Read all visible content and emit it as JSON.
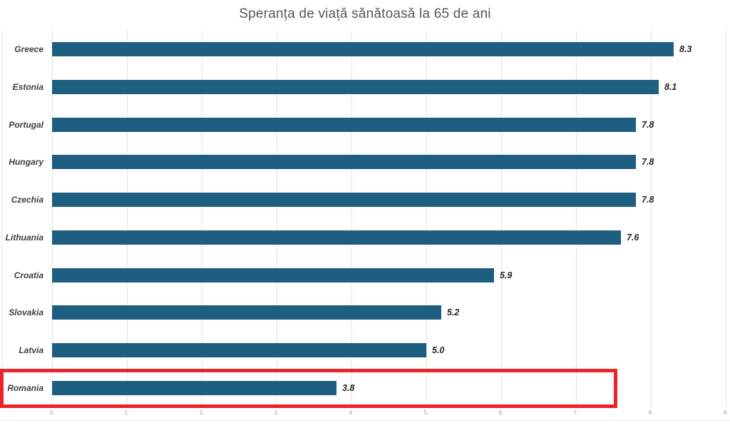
{
  "chart_data": {
    "type": "bar",
    "orientation": "horizontal",
    "title": "Speranța de viață sănătoasă la 65 de ani",
    "categories": [
      "Greece",
      "Estonia",
      "Portugal",
      "Hungary",
      "Czechia",
      "Lithuania",
      "Croatia",
      "Slovakia",
      "Latvia",
      "Romania"
    ],
    "values": [
      8.3,
      8.1,
      7.8,
      7.8,
      7.8,
      7.6,
      5.9,
      5.2,
      5.0,
      3.8
    ],
    "value_labels": [
      "8.3",
      "8.1",
      "7.8",
      "7.8",
      "7.8",
      "7.6",
      "5.9",
      "5.2",
      "5.0",
      "3.8"
    ],
    "x_ticks": [
      "0.",
      "1.",
      "2.",
      "3.",
      "4.",
      "5.",
      "6.",
      "7.",
      "8.",
      "9."
    ],
    "xlim": [
      0,
      9
    ],
    "grid": "vertical-only",
    "legend": "none",
    "highlighted_category": "Romania",
    "colors": {
      "bar": "#1E5E80",
      "highlight_box": "#E8252B",
      "gridline": "#E3E3E3",
      "chart_border": "#E6E6E6",
      "title_text": "#595959",
      "category_text": "#404040",
      "value_text": "#262626",
      "tick_text": "#9E9E9E"
    }
  }
}
